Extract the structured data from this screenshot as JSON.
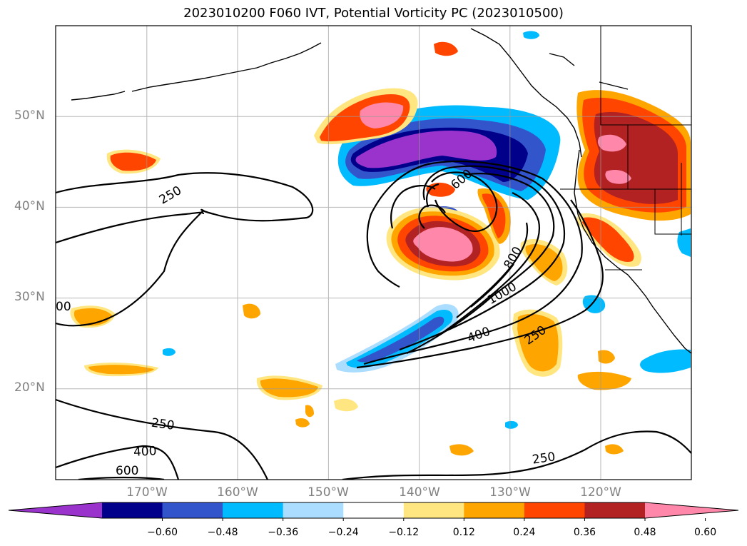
{
  "title": "2023010200 F060 IVT, Potential Vorticity PC (2023010500)",
  "lat_labels": [
    "50°N",
    "40°N",
    "30°N",
    "20°N"
  ],
  "lon_labels": [
    "170°W",
    "160°W",
    "150°W",
    "140°W",
    "130°W",
    "120°W"
  ],
  "contour_labels": [
    "250",
    "400",
    "600",
    "800",
    "1000",
    "250",
    "400",
    "600",
    "250",
    "00"
  ],
  "colorbar": {
    "colors": [
      "#9933cc",
      "#00008b",
      "#3355cc",
      "#00bbff",
      "#aaddff",
      "#ffffff",
      "#ffe680",
      "#ffa500",
      "#ff4500",
      "#b22222",
      "#ff88aa"
    ],
    "ticks": [
      "−0.60",
      "−0.48",
      "−0.36",
      "−0.24",
      "−0.12",
      "0.12",
      "0.24",
      "0.36",
      "0.48",
      "0.60"
    ]
  }
}
